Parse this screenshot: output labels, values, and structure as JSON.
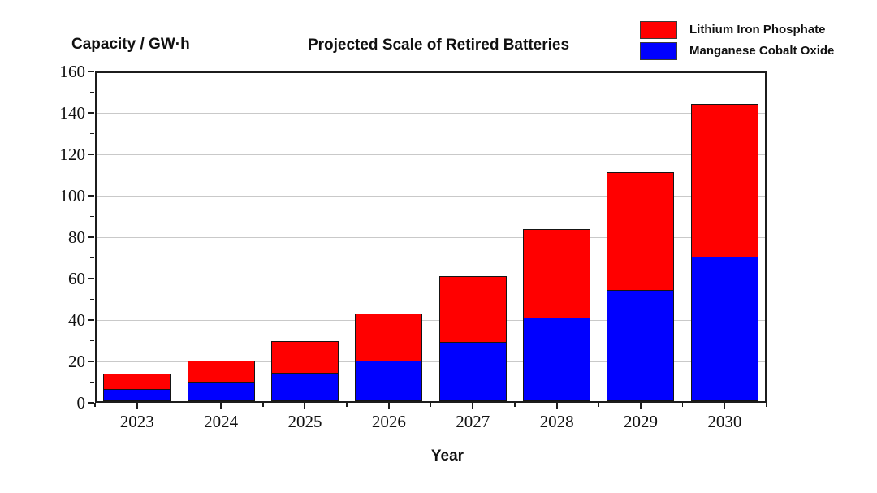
{
  "title": "Projected Scale of Retired Batteries",
  "y_axis_title": "Capacity / GW·h",
  "x_axis_title": "Year",
  "legend": [
    {
      "label": "Lithium Iron Phosphate",
      "color": "#ff0000"
    },
    {
      "label": "Manganese Cobalt Oxide",
      "color": "#0000ff"
    }
  ],
  "colors": {
    "bar_border": "#151515",
    "gridline": "#c9c9c9",
    "axis": "#1c1c1c"
  },
  "chart_data": {
    "type": "bar",
    "stacked": true,
    "title": "Projected Scale of Retired Batteries",
    "xlabel": "Year",
    "ylabel": "Capacity / GW·h",
    "categories": [
      "2023",
      "2024",
      "2025",
      "2026",
      "2027",
      "2028",
      "2029",
      "2030"
    ],
    "series": [
      {
        "name": "Manganese Cobalt Oxide",
        "color": "#0000ff",
        "values": [
          6.0,
          9.7,
          14.0,
          19.8,
          28.8,
          40.5,
          54.0,
          70.0
        ]
      },
      {
        "name": "Lithium Iron Phosphate",
        "color": "#ff0000",
        "values": [
          7.4,
          10.0,
          15.0,
          22.7,
          31.5,
          42.8,
          56.6,
          73.5
        ]
      }
    ],
    "stack_totals": [
      13.4,
      19.7,
      29.0,
      42.5,
      60.3,
      83.3,
      110.6,
      143.5
    ],
    "ylim": [
      0,
      160
    ],
    "yticks": [
      0,
      20,
      40,
      60,
      80,
      100,
      120,
      140,
      160
    ],
    "yminor_step": 10,
    "grid": true,
    "legend_position": "top-right"
  }
}
